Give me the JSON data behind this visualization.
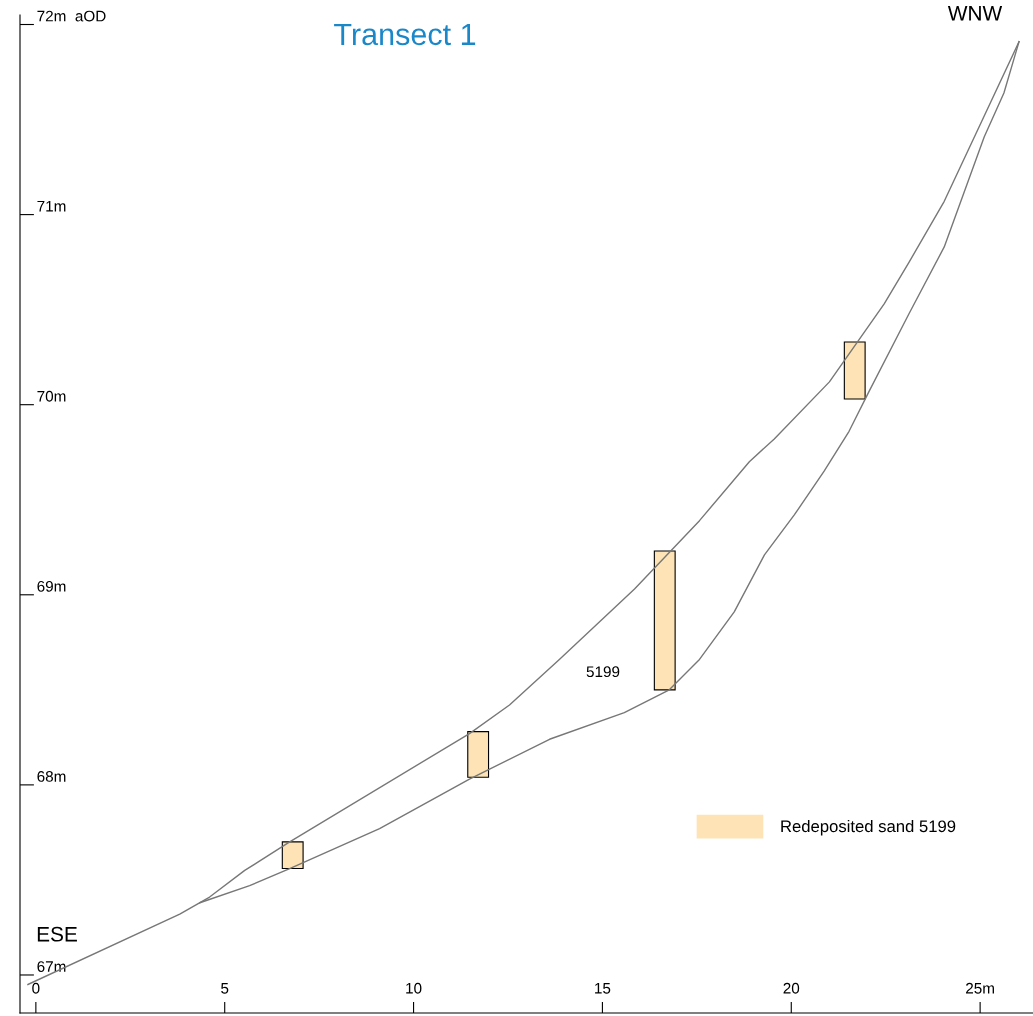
{
  "chart_data": {
    "type": "line",
    "title": "Transect 1",
    "xlim": [
      -0.42,
      26.4
    ],
    "ylim": [
      66.8,
      72.05
    ],
    "xticks": [
      0,
      5,
      10,
      15,
      20,
      {
        "value": 25,
        "label": "25m"
      }
    ],
    "yticks": [
      {
        "value": 67,
        "label": "67m"
      },
      {
        "value": 68,
        "label": "68m"
      },
      {
        "value": 69,
        "label": "69m"
      },
      {
        "value": 70,
        "label": "70m"
      },
      {
        "value": 71,
        "label": "71m"
      },
      {
        "value": 72,
        "label": "72m  aOD"
      }
    ],
    "grid": false,
    "legend": "bottom right",
    "marker": "none",
    "line_style": "solid",
    "series": [
      {
        "color": "#777777",
        "x": [
          -0.21,
          3.81,
          4.6,
          5.53,
          5.93,
          6.72,
          11.48,
          12.54,
          13.86,
          15.85,
          17.57,
          18.89,
          19.55,
          21.01,
          22.46,
          23.12,
          24.05,
          26.03
        ],
        "values": [
          66.95,
          67.32,
          67.41,
          67.55,
          67.6,
          67.7,
          68.27,
          68.42,
          68.66,
          69.03,
          69.39,
          69.7,
          69.82,
          70.12,
          70.53,
          70.75,
          71.07,
          71.91
        ]
      },
      {
        "color": "#777777",
        "x": [
          4.34,
          5.66,
          6.72,
          9.1,
          11.48,
          13.6,
          15.58,
          16.77,
          17.57,
          18.49,
          19.29,
          20.08,
          20.87,
          21.53,
          22.06,
          23.12,
          24.05,
          25.11,
          25.63,
          26.03
        ],
        "values": [
          67.38,
          67.47,
          67.56,
          67.77,
          68.03,
          68.24,
          68.38,
          68.5,
          68.66,
          68.91,
          69.21,
          69.42,
          69.65,
          69.86,
          70.07,
          70.48,
          70.83,
          71.41,
          71.64,
          71.91
        ]
      },
      {
        "type": "bar",
        "name": "Redeposited sand 5199",
        "color": "#fde3b5",
        "x": [
          6.8,
          11.71,
          16.65,
          21.68
        ],
        "base": [
          67.56,
          68.04,
          68.5,
          70.03
        ],
        "values": [
          0.14,
          0.24,
          0.73,
          0.3
        ]
      }
    ],
    "annotations": [
      "5199",
      "ESE",
      "WNW"
    ]
  }
}
